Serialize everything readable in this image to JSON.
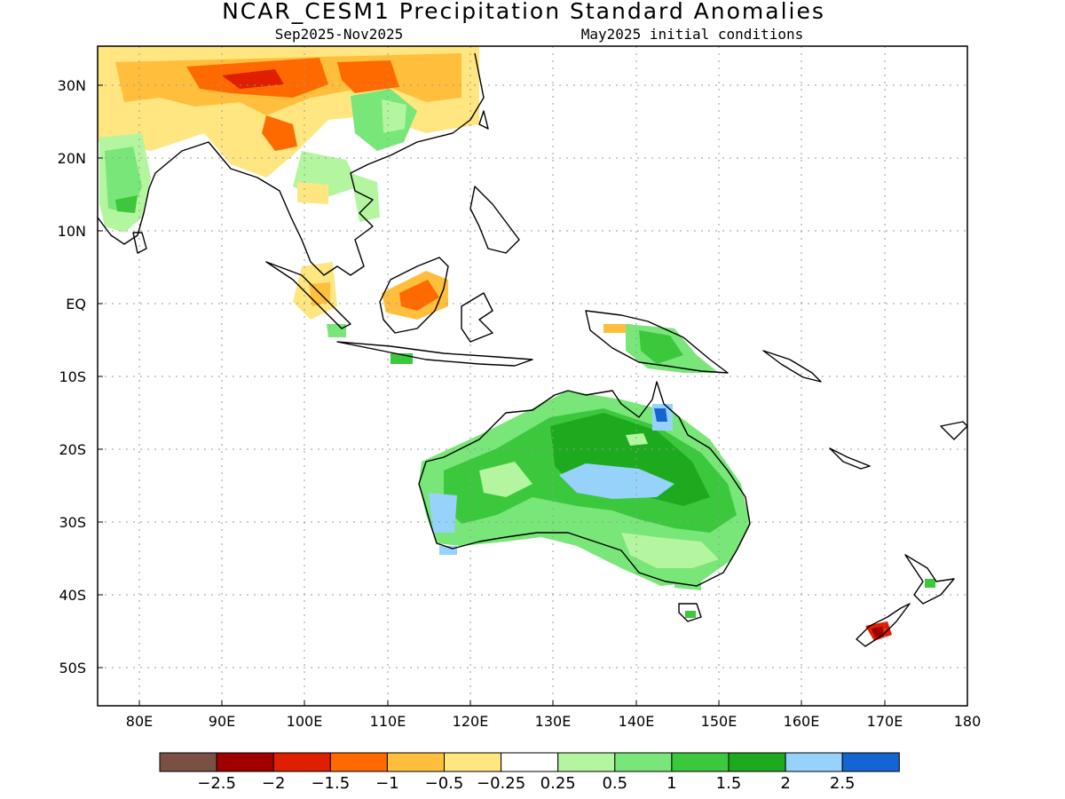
{
  "header": {
    "title": "NCAR_CESM1 Precipitation Standard Anomalies",
    "season": "Sep2025-Nov2025",
    "init": "May2025 initial conditions"
  },
  "axes": {
    "lon_labels": [
      "80E",
      "90E",
      "100E",
      "110E",
      "120E",
      "130E",
      "140E",
      "150E",
      "160E",
      "170E",
      "180"
    ],
    "lat_labels": [
      "30N",
      "20N",
      "10N",
      "EQ",
      "10S",
      "20S",
      "30S",
      "40S",
      "50S"
    ]
  },
  "colorbar": {
    "colors": [
      "#7a5044",
      "#a00000",
      "#e01e00",
      "#ff6a00",
      "#ffbe3c",
      "#ffe680",
      "#ffffff",
      "#b4f5a0",
      "#78e678",
      "#3cc83c",
      "#1eaa1e",
      "#96d2fa",
      "#1464d2"
    ],
    "labels": [
      "-2.5",
      "-2",
      "-1.5",
      "-1",
      "-0.5",
      "-0.25",
      "0.25",
      "0.5",
      "1",
      "1.5",
      "2",
      "2.5"
    ]
  }
}
